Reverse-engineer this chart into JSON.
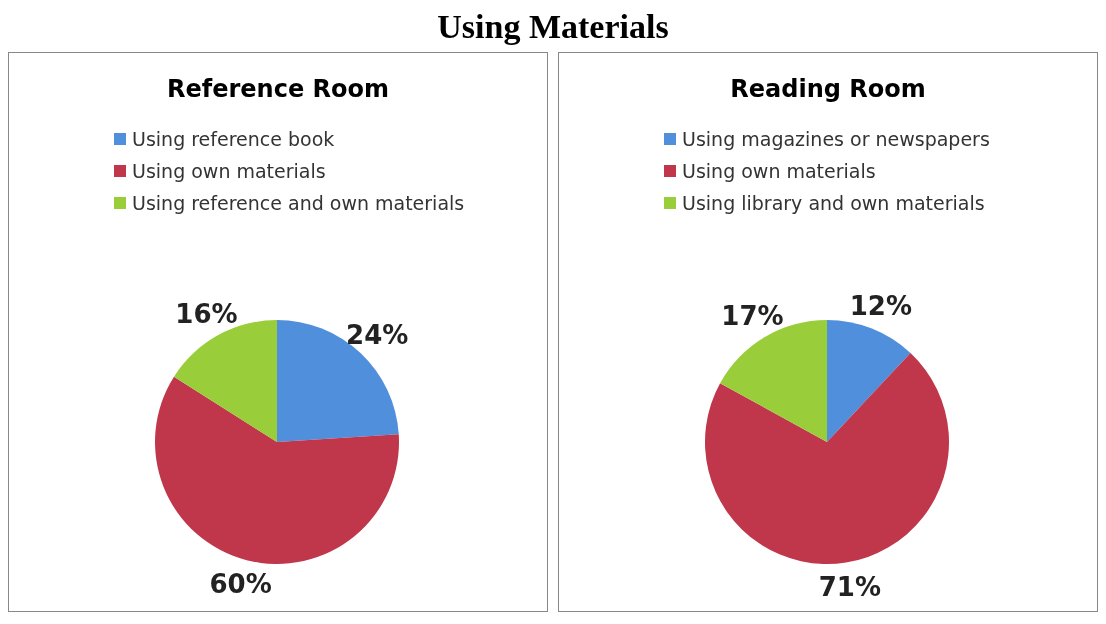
{
  "chart_data": [
    {
      "type": "pie",
      "title": "Reference Room",
      "annotations": [
        "Using Materials"
      ],
      "categories": [
        "Using reference  book",
        "Using own materials",
        "Using reference  and own materials"
      ],
      "values": [
        24,
        60,
        16
      ],
      "colors": [
        "#4f8fdc",
        "#c0364a",
        "#9acd3a"
      ],
      "value_labels": [
        "24%",
        "60%",
        "16%"
      ],
      "legend": "top"
    },
    {
      "type": "pie",
      "title": "Reading Room",
      "categories": [
        "Using magazines or newspapers",
        "Using own materials",
        "Using library and own materials"
      ],
      "values": [
        12,
        71,
        17
      ],
      "colors": [
        "#4f8fdc",
        "#c0364a",
        "#9acd3a"
      ],
      "value_labels": [
        "12%",
        "71%",
        "17%"
      ],
      "legend": "top"
    }
  ]
}
